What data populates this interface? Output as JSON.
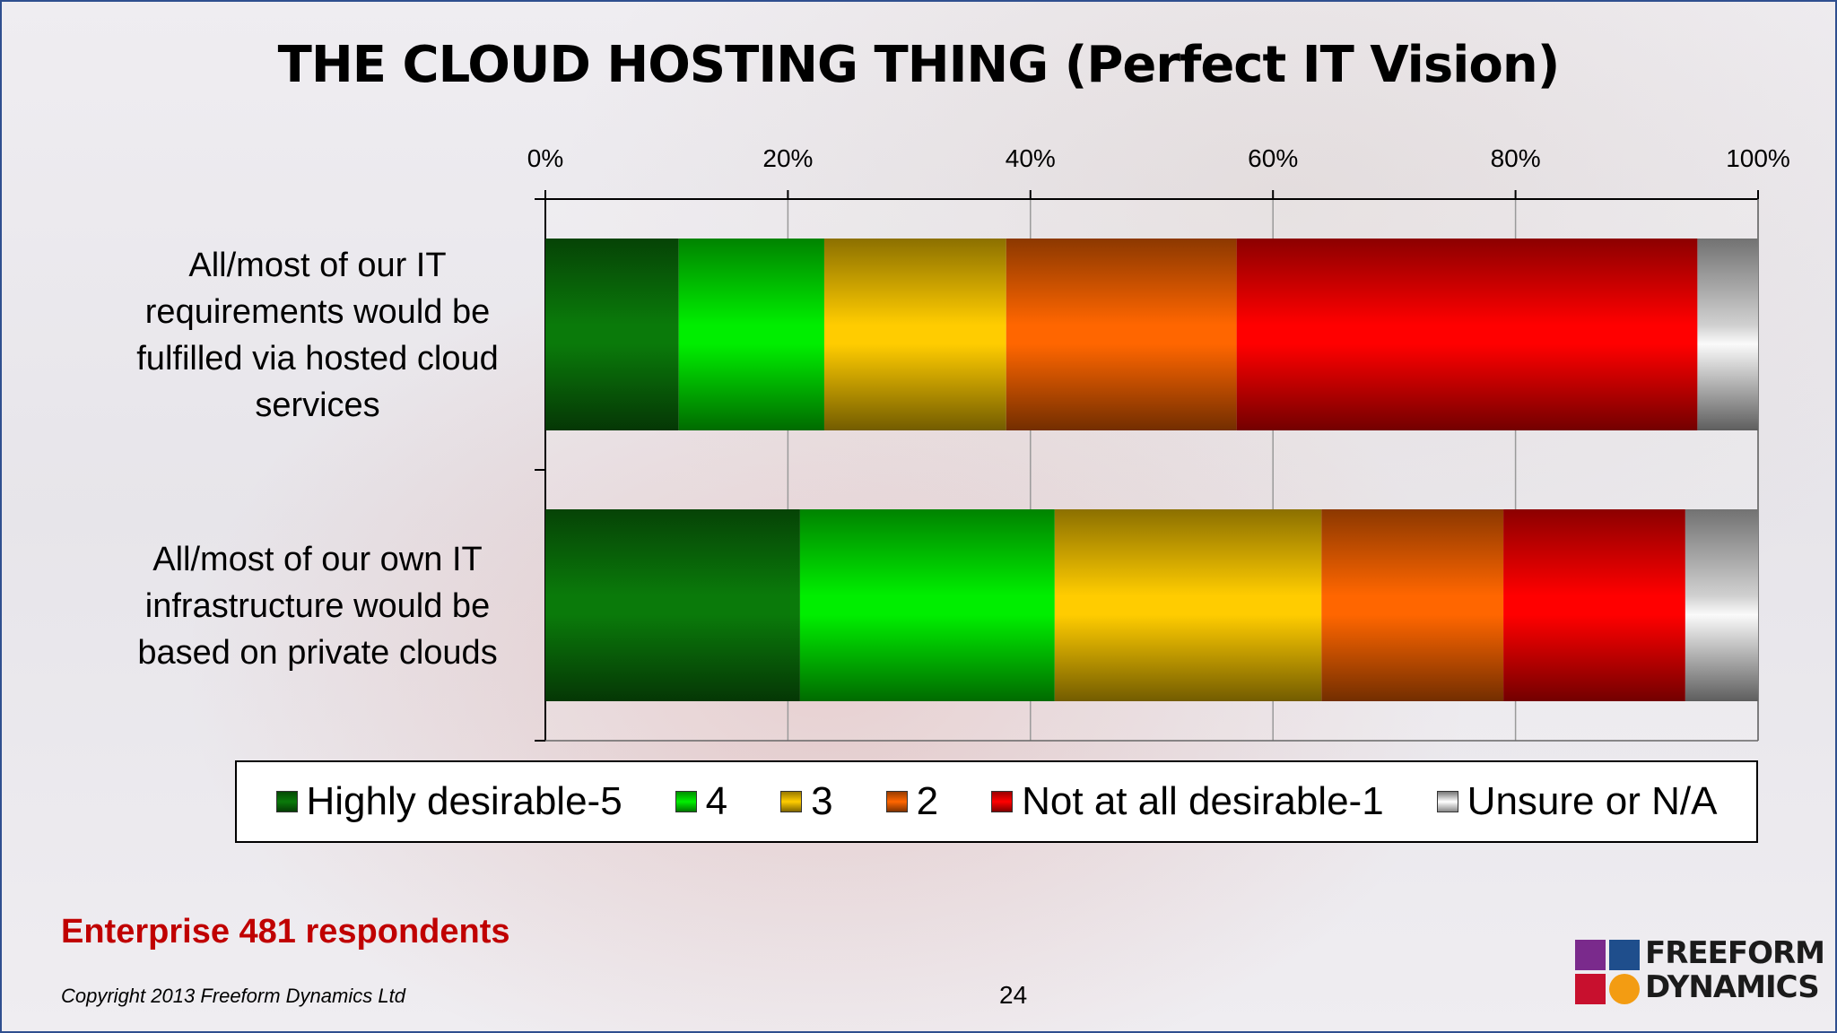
{
  "title": "THE CLOUD HOSTING THING (Perfect IT Vision)",
  "footer": {
    "respondents": "Enterprise 481 respondents",
    "copyright": "Copyright 2013 Freeform Dynamics Ltd",
    "page_number": "24"
  },
  "logo": {
    "line1": "FREEFORM",
    "line2": "DYNAMICS"
  },
  "chart_data": {
    "type": "bar",
    "orientation": "horizontal",
    "stacked": "percent",
    "title": "THE CLOUD HOSTING THING (Perfect IT Vision)",
    "xlim": [
      0,
      100
    ],
    "x_ticks": [
      "0%",
      "20%",
      "40%",
      "60%",
      "80%",
      "100%"
    ],
    "grid": true,
    "legend_position": "bottom",
    "categories": [
      [
        "All/most of our IT",
        "requirements would be",
        "fulfilled via hosted cloud",
        "services"
      ],
      [
        "All/most of our own IT",
        "infrastructure would be",
        "based on private clouds"
      ]
    ],
    "series": [
      {
        "name": "Highly desirable-5",
        "color": "#0a7a0a",
        "values": [
          11,
          21
        ]
      },
      {
        "name": "4",
        "color": "#00ee00",
        "values": [
          12,
          21
        ]
      },
      {
        "name": "3",
        "color": "#ffcc00",
        "values": [
          15,
          22
        ]
      },
      {
        "name": "2",
        "color": "#ff6600",
        "values": [
          19,
          15
        ]
      },
      {
        "name": "Not at all desirable-1",
        "color": "#ff0000",
        "values": [
          38,
          15
        ]
      },
      {
        "name": "Unsure or N/A",
        "color": "#d0d0d0",
        "values": [
          5,
          6
        ]
      }
    ]
  }
}
